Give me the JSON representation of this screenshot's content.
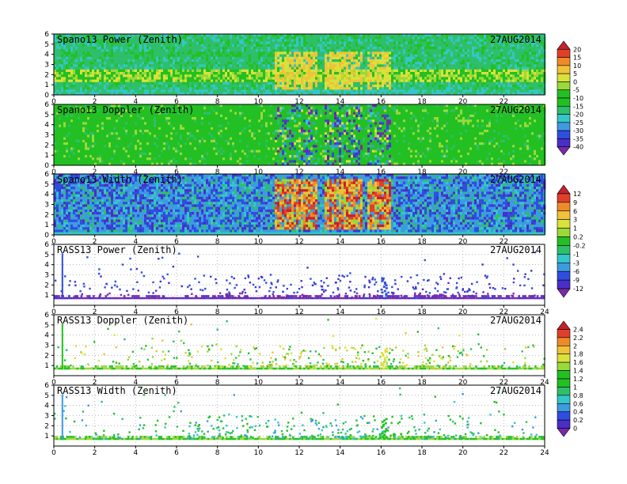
{
  "colors": {
    "rainbow": [
      "#7a2aa8",
      "#4a2ec8",
      "#2f4ee0",
      "#3d9be0",
      "#35c6c8",
      "#2fbf6a",
      "#22c022",
      "#9bd83a",
      "#d8e23a",
      "#efc23a",
      "#ee8a2a",
      "#e0402a",
      "#c4222e"
    ]
  },
  "colorbars": [
    {
      "id": "cb-power-doppler",
      "labels": [
        "20",
        "15",
        "10",
        "5",
        "0",
        "-5",
        "-10",
        "-15",
        "-20",
        "-25",
        "-30",
        "-35",
        "-40"
      ]
    },
    {
      "id": "cb-width-rasspower",
      "labels": [
        "12",
        "9",
        "6",
        "3",
        "1",
        "0.2",
        "-0.2",
        "-1",
        "-3",
        "-6",
        "-9",
        "-12"
      ]
    },
    {
      "id": "cb-rass",
      "labels": [
        "2.4",
        "2.2",
        "2",
        "1.8",
        "1.6",
        "1.4",
        "1.2",
        "1",
        "0.8",
        "0.6",
        "0.4",
        "0.2",
        "0"
      ]
    }
  ],
  "chart_data": [
    {
      "type": "heatmap",
      "title": "Spano13 Power (Zenith)",
      "date": "27AUG2014",
      "xlim": [
        0,
        24
      ],
      "ylim": [
        0,
        6
      ],
      "xticks": [
        "0",
        "2",
        "4",
        "6",
        "8",
        "10",
        "12",
        "14",
        "16",
        "18",
        "20",
        "22"
      ],
      "yticks": [
        "0",
        "1",
        "2",
        "3",
        "4",
        "5",
        "6"
      ],
      "colorbar": "cb-power-doppler"
    },
    {
      "type": "heatmap",
      "title": "Spano13 Doppler (Zenith)",
      "date": "27AUG2014",
      "xlim": [
        0,
        24
      ],
      "ylim": [
        0,
        6
      ],
      "xticks": [
        "0",
        "2",
        "4",
        "6",
        "8",
        "10",
        "12",
        "14",
        "16",
        "18",
        "20",
        "22"
      ],
      "yticks": [
        "0",
        "1",
        "2",
        "3",
        "4",
        "5",
        "6"
      ],
      "colorbar": "cb-power-doppler"
    },
    {
      "type": "heatmap",
      "title": "Spano13 Width (Zenith)",
      "date": "27AUG2014",
      "xlim": [
        0,
        24
      ],
      "ylim": [
        0,
        6
      ],
      "xticks": [
        "0",
        "2",
        "4",
        "6",
        "8",
        "10",
        "12",
        "14",
        "16",
        "18",
        "20",
        "22"
      ],
      "yticks": [
        "0",
        "1",
        "2",
        "3",
        "4",
        "5",
        "6"
      ],
      "colorbar": "cb-width-rasspower"
    },
    {
      "type": "scatter",
      "title": "RASS13 Power (Zenith)",
      "date": "27AUG2014",
      "xlim": [
        0,
        24
      ],
      "ylim": [
        0,
        6
      ],
      "xticks": [
        "0",
        "2",
        "4",
        "6",
        "8",
        "10",
        "12",
        "14",
        "16",
        "18",
        "20",
        "22",
        "24"
      ],
      "yticks": [
        "1",
        "2",
        "3",
        "4",
        "5",
        "6"
      ],
      "colorbar": "cb-width-rasspower"
    },
    {
      "type": "scatter",
      "title": "RASS13 Doppler (Zenith)",
      "date": "27AUG2014",
      "xlim": [
        0,
        24
      ],
      "ylim": [
        0,
        6
      ],
      "xticks": [
        "0",
        "2",
        "4",
        "6",
        "8",
        "10",
        "12",
        "14",
        "16",
        "18",
        "20",
        "22",
        "24"
      ],
      "yticks": [
        "1",
        "2",
        "3",
        "4",
        "5",
        "6"
      ],
      "colorbar": "cb-rass"
    },
    {
      "type": "scatter",
      "title": "RASS13 Width (Zenith)",
      "date": "27AUG2014",
      "xlim": [
        0,
        24
      ],
      "ylim": [
        0,
        6
      ],
      "xticks": [
        "0",
        "2",
        "4",
        "6",
        "8",
        "10",
        "12",
        "14",
        "16",
        "18",
        "20",
        "22",
        "24"
      ],
      "yticks": [
        "1",
        "2",
        "3",
        "4",
        "5",
        "6"
      ],
      "colorbar": "cb-rass"
    }
  ]
}
